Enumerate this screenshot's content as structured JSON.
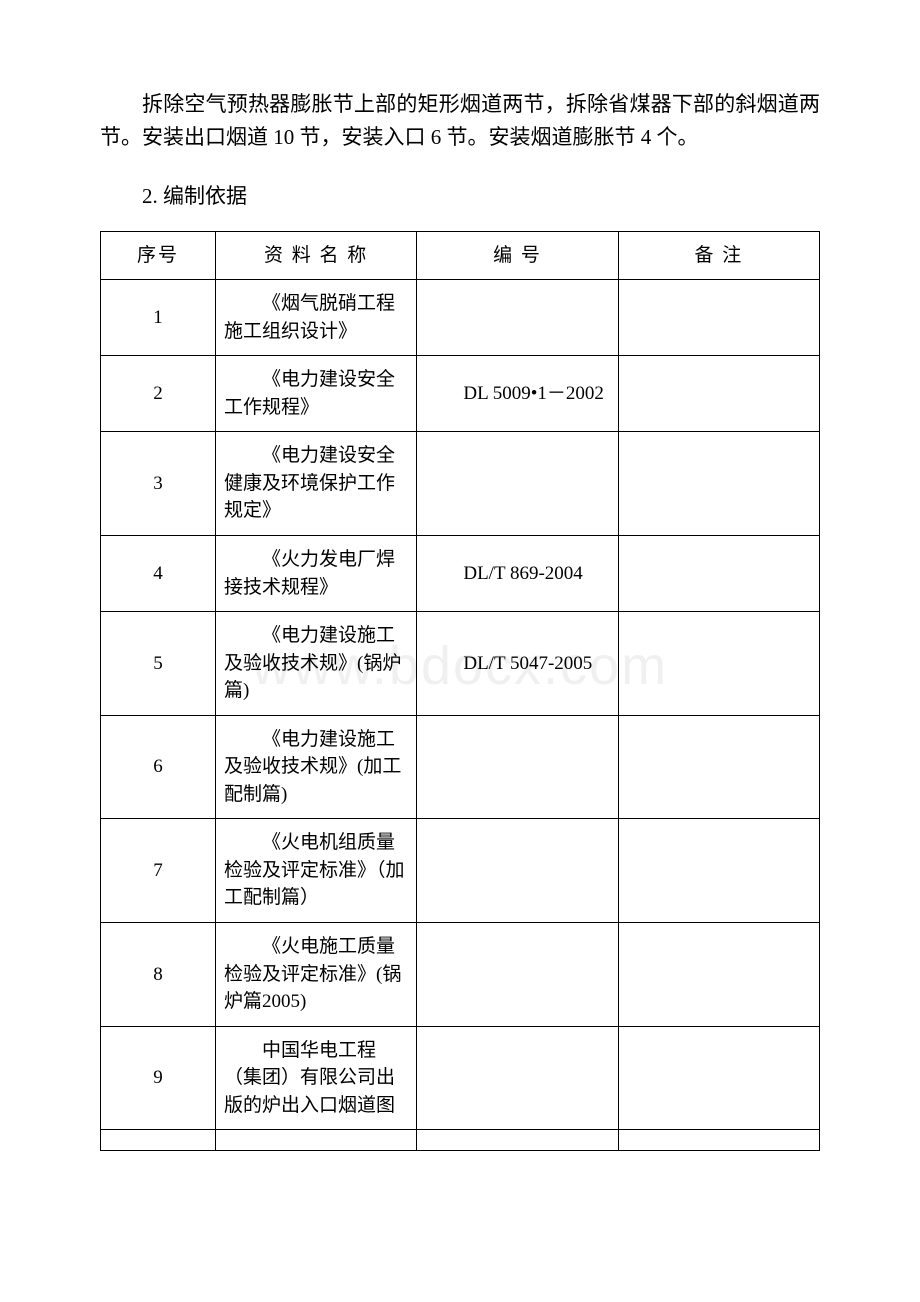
{
  "intro_paragraph": "拆除空气预热器膨胀节上部的矩形烟道两节，拆除省煤器下部的斜烟道两节。安装出口烟道 10 节，安装入口 6 节。安装烟道膨胀节 4 个。",
  "section_heading": "2. 编制依据",
  "watermark_text": "www.bdocx.com",
  "table": {
    "headers": {
      "seq": "序号",
      "name": "资 料 名 称",
      "code": "编 号",
      "note": "备 注"
    },
    "rows": [
      {
        "seq": "1",
        "name": "《烟气脱硝工程施工组织设计》",
        "code": "",
        "note": ""
      },
      {
        "seq": "2",
        "name": "《电力建设安全工作规程》",
        "code": "DL 5009•1－2002",
        "note": ""
      },
      {
        "seq": "3",
        "name": "《电力建设安全健康及环境保护工作规定》",
        "code": "",
        "note": ""
      },
      {
        "seq": "4",
        "name": "《火力发电厂焊接技术规程》",
        "code": "DL/T 869-2004",
        "note": ""
      },
      {
        "seq": "5",
        "name": "《电力建设施工及验收技术规》(锅炉篇)",
        "code": "DL/T 5047-2005",
        "note": ""
      },
      {
        "seq": "6",
        "name": "《电力建设施工及验收技术规》(加工配制篇)",
        "code": "",
        "note": ""
      },
      {
        "seq": "7",
        "name": "《火电机组质量检验及评定标准》（加工配制篇）",
        "code": "",
        "note": ""
      },
      {
        "seq": "8",
        "name": "《火电施工质量检验及评定标准》(锅炉篇2005)",
        "code": "",
        "note": ""
      },
      {
        "seq": "9",
        "name": "中国华电工程（集团）有限公司出版的炉出入口烟道图",
        "code": "",
        "note": ""
      }
    ]
  }
}
